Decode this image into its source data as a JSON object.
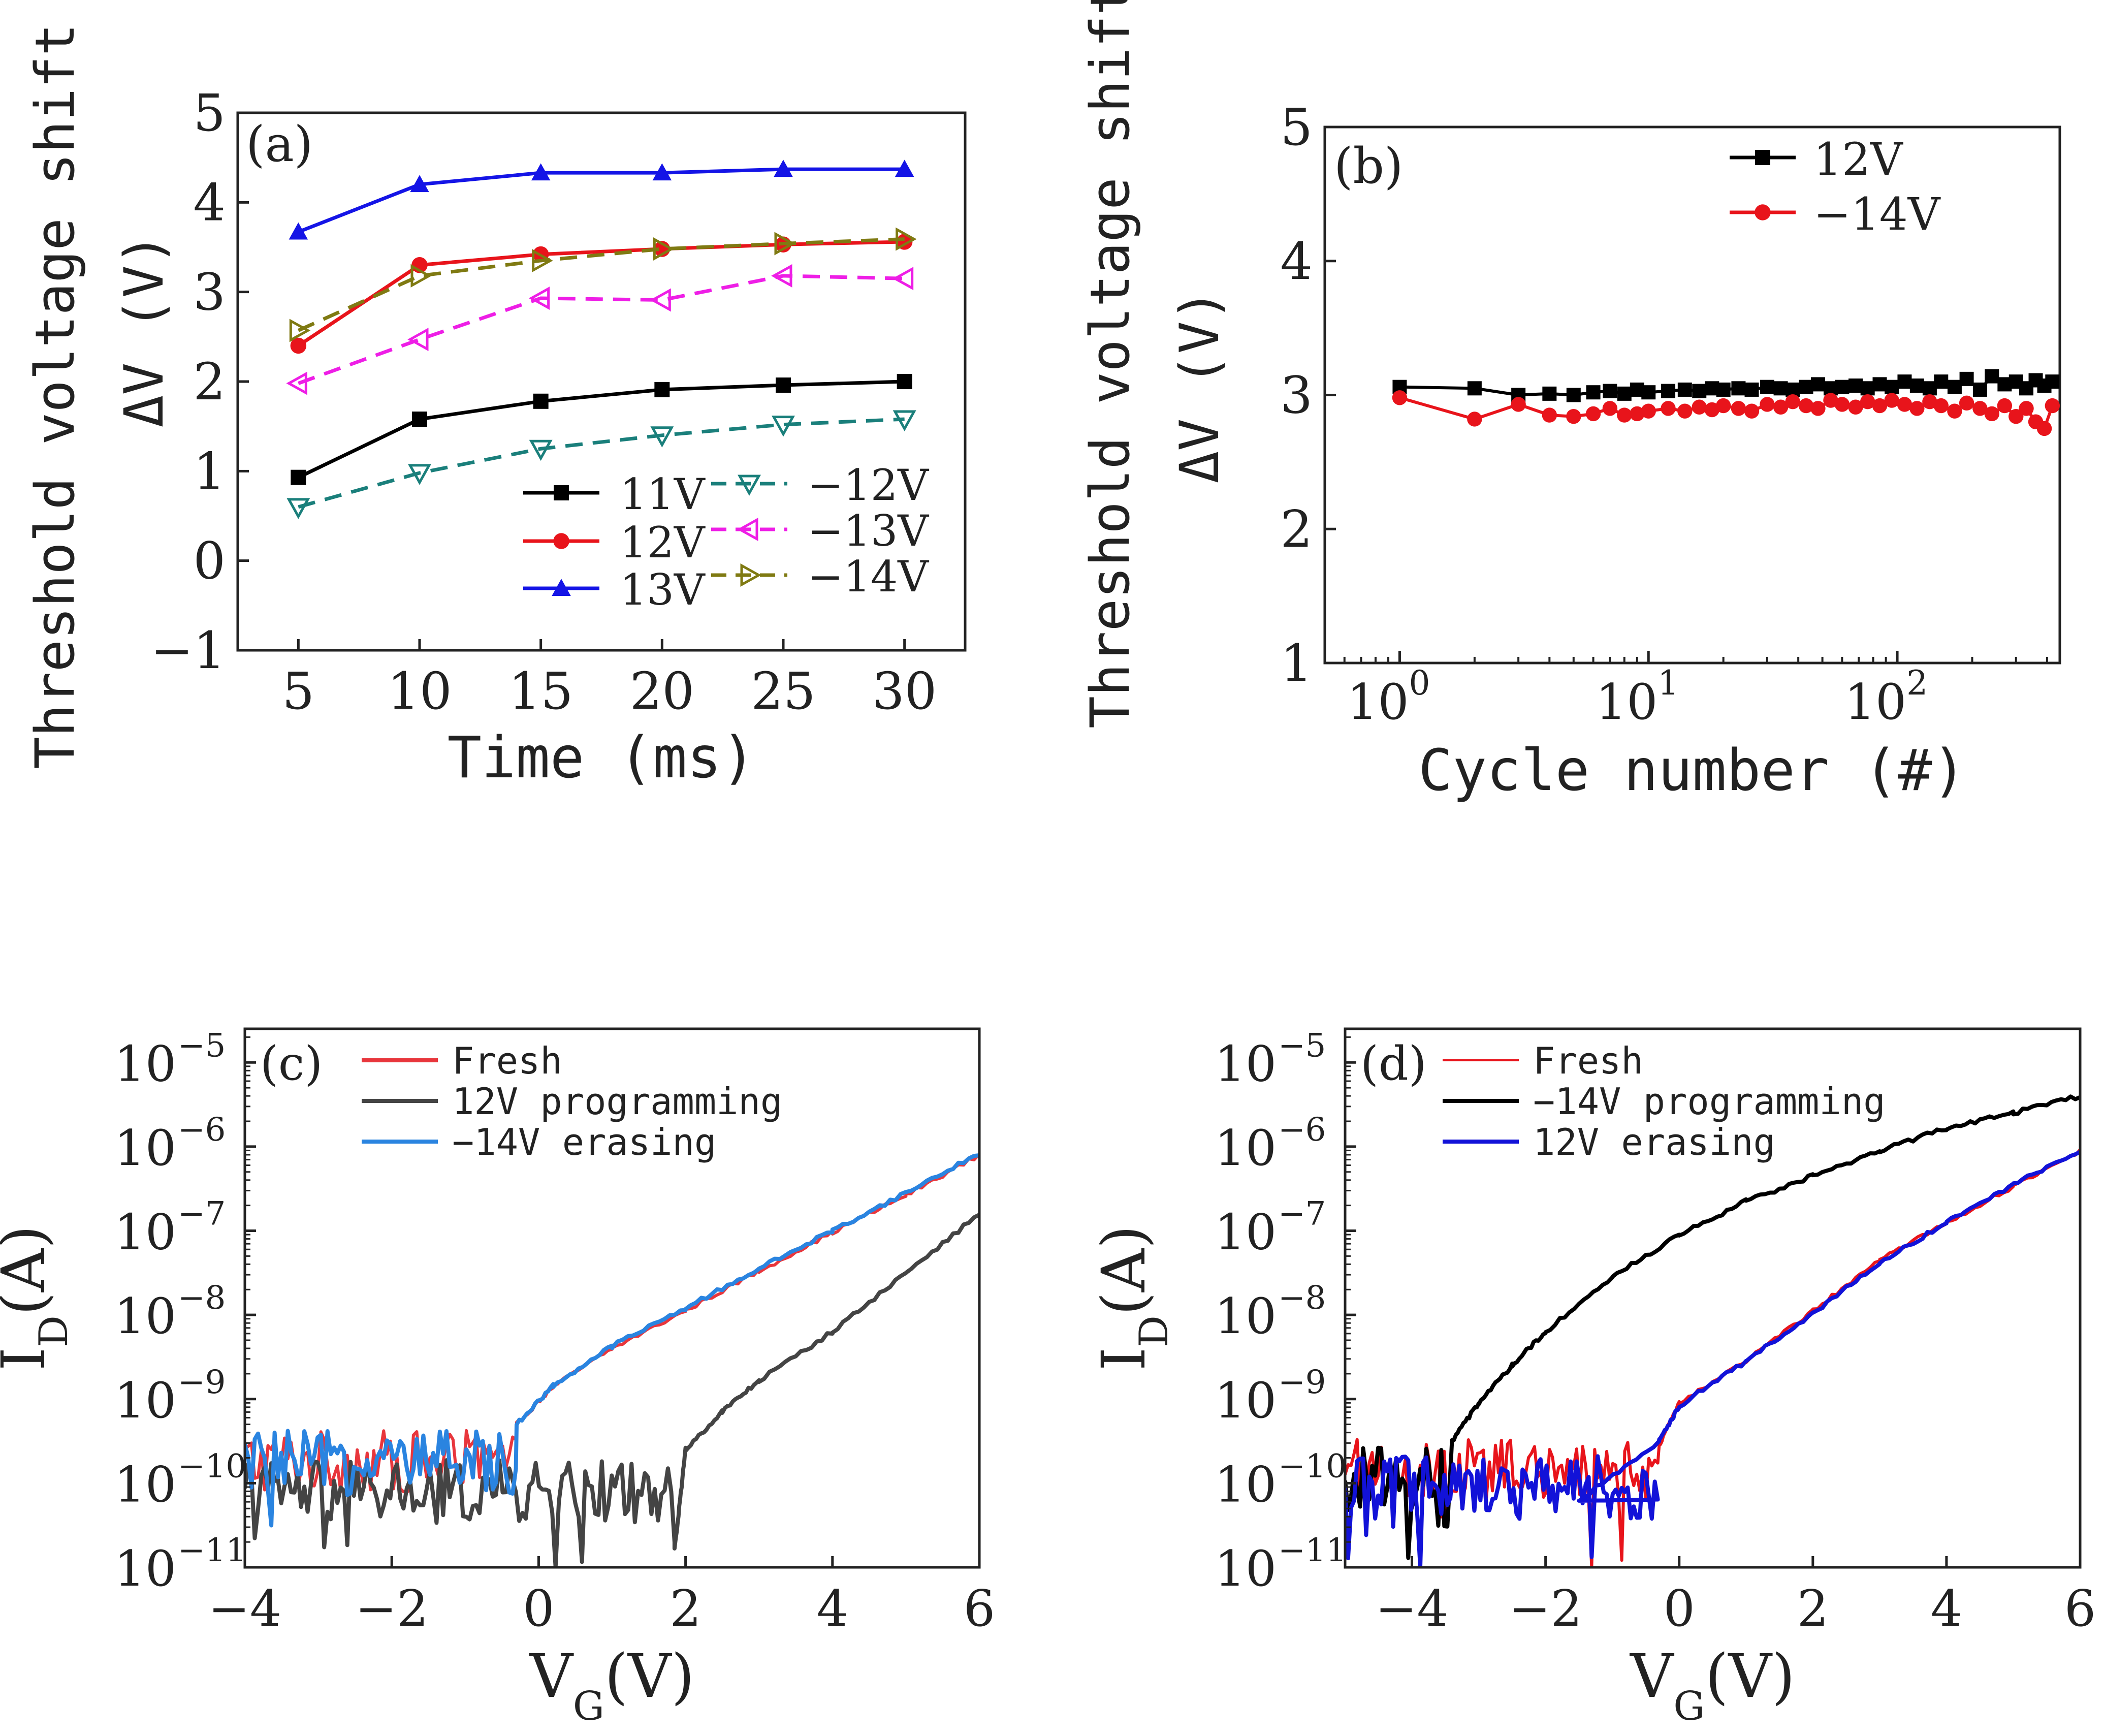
{
  "chart_data": [
    {
      "id": "a",
      "type": "line",
      "panel_label": "(a)",
      "xlabel": "Time (ms)",
      "ylabel_line1": "Threshold voltage shift",
      "ylabel_line2": "ΔV (V)",
      "xlim": [
        2.5,
        32.5
      ],
      "ylim": [
        -1,
        5
      ],
      "xticks": [
        5,
        10,
        15,
        20,
        25,
        30
      ],
      "xtick_labels": [
        "5",
        "10",
        "15",
        "20",
        "25",
        "30"
      ],
      "yticks": [
        -1,
        0,
        1,
        2,
        3,
        4,
        5
      ],
      "ytick_labels": [
        "−1",
        "0",
        "1",
        "2",
        "3",
        "4",
        "5"
      ],
      "x": [
        5,
        10,
        15,
        20,
        25,
        30
      ],
      "series": [
        {
          "name": "11V",
          "color": "#000000",
          "dash": "solid",
          "marker": "square",
          "values": [
            0.93,
            1.58,
            1.78,
            1.91,
            1.96,
            2.0
          ]
        },
        {
          "name": "12V",
          "color": "#e8141b",
          "dash": "solid",
          "marker": "circle",
          "values": [
            2.4,
            3.3,
            3.42,
            3.48,
            3.53,
            3.56
          ]
        },
        {
          "name": "13V",
          "color": "#1414e6",
          "dash": "solid",
          "marker": "triangle-up",
          "values": [
            3.67,
            4.2,
            4.33,
            4.33,
            4.37,
            4.37
          ]
        },
        {
          "name": "−12V",
          "color": "#1a7f7b",
          "dash": "dashed",
          "marker": "triangle-down-open",
          "values": [
            0.6,
            0.98,
            1.25,
            1.4,
            1.52,
            1.58
          ]
        },
        {
          "name": "−13V",
          "color": "#ee1ee6",
          "dash": "dashed",
          "marker": "triangle-left-open",
          "values": [
            1.98,
            2.47,
            2.93,
            2.91,
            3.18,
            3.15
          ]
        },
        {
          "name": "−14V",
          "color": "#7f7a12",
          "dash": "dashed",
          "marker": "triangle-right-open",
          "values": [
            2.57,
            3.18,
            3.35,
            3.48,
            3.54,
            3.59
          ]
        }
      ]
    },
    {
      "id": "b",
      "type": "scatter",
      "panel_label": "(b)",
      "xlabel": "Cycle number (#)",
      "ylabel_line1": "Threshold voltage shift",
      "ylabel_line2": "ΔV (V)",
      "xscale": "log",
      "xlim": [
        0.5,
        450
      ],
      "ylim": [
        1,
        5
      ],
      "xticks": [
        1,
        10,
        100
      ],
      "xtick_labels": [
        "10",
        "10",
        "10"
      ],
      "xtick_exponents": [
        "0",
        "1",
        "2"
      ],
      "yticks": [
        1,
        2,
        3,
        4,
        5
      ],
      "ytick_labels": [
        "1",
        "2",
        "3",
        "4",
        "5"
      ],
      "series": [
        {
          "name": "12V",
          "color": "#000000",
          "marker": "square",
          "x": [
            1,
            2,
            3,
            4,
            5,
            6,
            7,
            8,
            9,
            10,
            12,
            14,
            16,
            18,
            20,
            23,
            26,
            30,
            34,
            38,
            43,
            48,
            54,
            60,
            68,
            76,
            85,
            95,
            107,
            120,
            135,
            150,
            170,
            190,
            215,
            240,
            270,
            300,
            330,
            360,
            390,
            420
          ],
          "y": [
            3.06,
            3.05,
            3.0,
            3.01,
            3.0,
            3.02,
            3.03,
            3.01,
            3.04,
            3.02,
            3.03,
            3.04,
            3.03,
            3.05,
            3.04,
            3.05,
            3.04,
            3.06,
            3.05,
            3.04,
            3.06,
            3.08,
            3.05,
            3.06,
            3.07,
            3.05,
            3.08,
            3.06,
            3.1,
            3.07,
            3.05,
            3.1,
            3.06,
            3.12,
            3.04,
            3.14,
            3.08,
            3.1,
            3.05,
            3.11,
            3.07,
            3.1
          ]
        },
        {
          "name": "−14V",
          "color": "#e8141b",
          "marker": "circle",
          "x": [
            1,
            2,
            3,
            4,
            5,
            6,
            7,
            8,
            9,
            10,
            12,
            14,
            16,
            18,
            20,
            23,
            26,
            30,
            34,
            38,
            43,
            48,
            54,
            60,
            68,
            76,
            85,
            95,
            107,
            120,
            135,
            150,
            170,
            190,
            215,
            240,
            270,
            300,
            330,
            360,
            390,
            420
          ],
          "y": [
            2.98,
            2.82,
            2.93,
            2.85,
            2.84,
            2.86,
            2.9,
            2.85,
            2.86,
            2.88,
            2.9,
            2.88,
            2.91,
            2.89,
            2.92,
            2.9,
            2.88,
            2.93,
            2.91,
            2.95,
            2.92,
            2.9,
            2.96,
            2.93,
            2.91,
            2.95,
            2.92,
            2.96,
            2.93,
            2.9,
            2.95,
            2.92,
            2.88,
            2.94,
            2.9,
            2.86,
            2.92,
            2.84,
            2.9,
            2.8,
            2.75,
            2.92
          ]
        }
      ]
    },
    {
      "id": "c",
      "type": "line",
      "panel_label": "(c)",
      "xlabel_main": "V",
      "xlabel_sub": "G",
      "xlabel_unit": "(V)",
      "ylabel_main": "I",
      "ylabel_sub": "D",
      "ylabel_unit": "(A)",
      "yscale": "log",
      "xlim": [
        -4,
        6
      ],
      "ylim_exp": [
        -11,
        -4.6
      ],
      "xticks": [
        -4,
        -2,
        0,
        2,
        4,
        6
      ],
      "xtick_labels": [
        "−4",
        "−2",
        "0",
        "2",
        "4",
        "6"
      ],
      "yticks_exp": [
        -11,
        -10,
        -9,
        -8,
        -7,
        -6,
        -5
      ],
      "ytick_base": "10",
      "ytick_exponents": [
        "−11",
        "−10",
        "−9",
        "−8",
        "−7",
        "−6",
        "−5"
      ],
      "series": [
        {
          "name": "Fresh",
          "color": "#e8363c",
          "noise_until": -0.3,
          "noise_level": -9.75,
          "points": [
            [
              -0.3,
              -9.3
            ],
            [
              0.2,
              -8.85
            ],
            [
              1,
              -8.4
            ],
            [
              2,
              -7.95
            ],
            [
              3,
              -7.48
            ],
            [
              4,
              -7.02
            ],
            [
              5,
              -6.58
            ],
            [
              6,
              -6.1
            ]
          ]
        },
        {
          "name": "12V programming",
          "color": "#444444",
          "noise_until": 1.85,
          "noise_level": -10.1,
          "points": [
            [
              1.85,
              -10.8
            ],
            [
              2.0,
              -9.6
            ],
            [
              2.5,
              -9.15
            ],
            [
              3,
              -8.78
            ],
            [
              4,
              -8.2
            ],
            [
              5,
              -7.5
            ],
            [
              6,
              -6.8
            ]
          ]
        },
        {
          "name": "−14V erasing",
          "color": "#2a84e0",
          "noise_until": -0.3,
          "noise_level": -9.75,
          "points": [
            [
              -0.3,
              -9.3
            ],
            [
              0.2,
              -8.84
            ],
            [
              1,
              -8.37
            ],
            [
              2,
              -7.92
            ],
            [
              3,
              -7.45
            ],
            [
              4,
              -7.0
            ],
            [
              5,
              -6.55
            ],
            [
              6,
              -6.08
            ]
          ]
        }
      ]
    },
    {
      "id": "d",
      "type": "line",
      "panel_label": "(d)",
      "xlabel_main": "V",
      "xlabel_sub": "G",
      "xlabel_unit": "(V)",
      "ylabel_main": "I",
      "ylabel_sub": "D",
      "ylabel_unit": "(A)",
      "yscale": "log",
      "xlim": [
        -5,
        6
      ],
      "ylim_exp": [
        -11,
        -4.6
      ],
      "xticks": [
        -4,
        -2,
        0,
        2,
        4,
        6
      ],
      "xtick_labels": [
        "−4",
        "−2",
        "0",
        "2",
        "4",
        "6"
      ],
      "yticks_exp": [
        -11,
        -10,
        -9,
        -8,
        -7,
        -6,
        -5
      ],
      "ytick_base": "10",
      "ytick_exponents": [
        "−11",
        "−10",
        "−9",
        "−8",
        "−7",
        "−6",
        "−5"
      ],
      "series": [
        {
          "name": "Fresh",
          "color": "#e8141b",
          "noise_until": -0.3,
          "noise_level": -9.85,
          "points": [
            [
              -0.3,
              -9.55
            ],
            [
              0,
              -9.05
            ],
            [
              1,
              -8.55
            ],
            [
              2,
              -7.95
            ],
            [
              3,
              -7.35
            ],
            [
              4,
              -6.9
            ],
            [
              5,
              -6.48
            ],
            [
              6,
              -6.05
            ]
          ]
        },
        {
          "name": "−14V programming",
          "color": "#000000",
          "noise_until": -3.4,
          "noise_level": -9.95,
          "points": [
            [
              -3.4,
              -9.5
            ],
            [
              -3,
              -9.05
            ],
            [
              -2.5,
              -8.6
            ],
            [
              -2,
              -8.2
            ],
            [
              -1,
              -7.55
            ],
            [
              0,
              -7.05
            ],
            [
              1,
              -6.65
            ],
            [
              2,
              -6.35
            ],
            [
              3,
              -6.05
            ],
            [
              4,
              -5.78
            ],
            [
              5,
              -5.6
            ],
            [
              6,
              -5.4
            ]
          ]
        },
        {
          "name": " 12V erasing",
          "color": "#1212d8",
          "noise_until": -0.3,
          "noise_level": -10.05,
          "points": [
            [
              -1.5,
              -10.2
            ],
            [
              -0.3,
              -9.5
            ],
            [
              0,
              -9.08
            ],
            [
              1,
              -8.55
            ],
            [
              2,
              -7.98
            ],
            [
              3,
              -7.38
            ],
            [
              4,
              -6.9
            ],
            [
              5,
              -6.45
            ],
            [
              6,
              -6.05
            ]
          ]
        }
      ]
    }
  ]
}
